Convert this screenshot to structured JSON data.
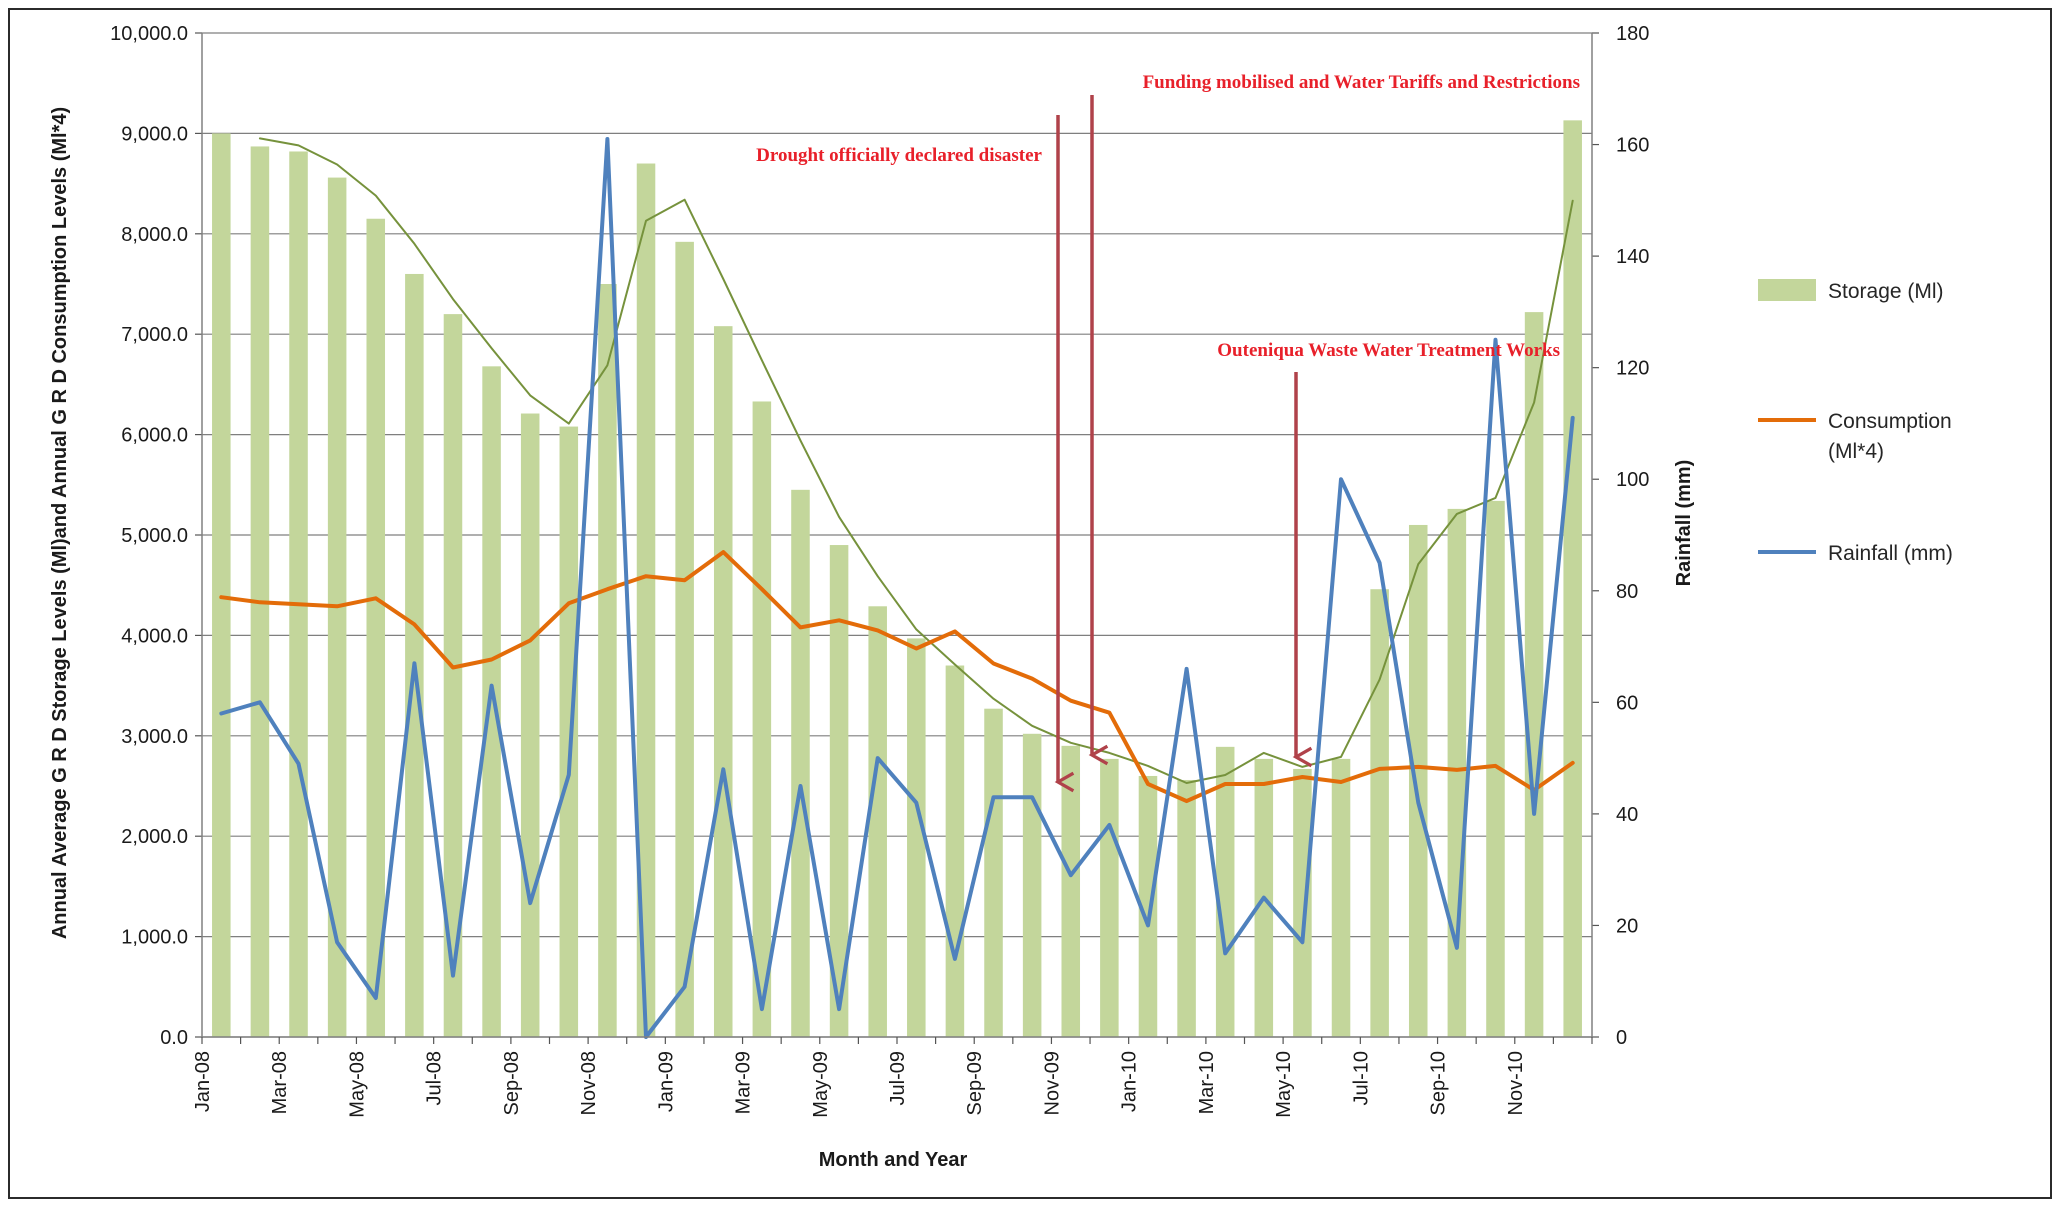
{
  "chart_data": {
    "type": "bar",
    "title": "",
    "xlabel": "Month and Year",
    "ylabel": "Annual Average G R D Storage Levels (Ml)and Annual G R D Consumption Levels (Ml*4)",
    "y2label": "Rainfall (mm)",
    "ylim": [
      0,
      10000
    ],
    "y2lim": [
      0,
      180
    ],
    "y_ticks": [
      "0.0",
      "1,000.0",
      "2,000.0",
      "3,000.0",
      "4,000.0",
      "5,000.0",
      "6,000.0",
      "7,000.0",
      "8,000.0",
      "9,000.0",
      "10,000.0"
    ],
    "y2_ticks": [
      "0",
      "20",
      "40",
      "60",
      "80",
      "100",
      "120",
      "140",
      "160",
      "180"
    ],
    "grid": true,
    "legend_position": "right",
    "categories": [
      "Jan-08",
      "Feb-08",
      "Mar-08",
      "Apr-08",
      "May-08",
      "Jun-08",
      "Jul-08",
      "Aug-08",
      "Sep-08",
      "Oct-08",
      "Nov-08",
      "Dec-08",
      "Jan-09",
      "Feb-09",
      "Mar-09",
      "Apr-09",
      "May-09",
      "Jun-09",
      "Jul-09",
      "Aug-09",
      "Sep-09",
      "Oct-09",
      "Nov-09",
      "Dec-09",
      "Jan-10",
      "Feb-10",
      "Mar-10",
      "Apr-10",
      "May-10",
      "Jun-10",
      "Jul-10",
      "Aug-10",
      "Sep-10",
      "Oct-10",
      "Nov-10",
      "Dec-10"
    ],
    "x_tick_labels": [
      "Jan-08",
      "Mar-08",
      "May-08",
      "Jul-08",
      "Sep-08",
      "Nov-08",
      "Jan-09",
      "Mar-09",
      "May-09",
      "Jul-09",
      "Sep-09",
      "Nov-09",
      "Jan-10",
      "Mar-10",
      "May-10",
      "Jul-10",
      "Sep-10",
      "Nov-10"
    ],
    "series": [
      {
        "name": "Storage (Ml)",
        "type": "bar",
        "axis": "left",
        "color": "#c3d69b",
        "values": [
          9000,
          8870,
          8820,
          8560,
          8150,
          7600,
          7200,
          6680,
          6210,
          6080,
          7500,
          8700,
          7920,
          7080,
          6330,
          5450,
          4900,
          4290,
          3970,
          3700,
          3270,
          3020,
          2900,
          2770,
          2600,
          2560,
          2890,
          2770,
          2670,
          2770,
          4460,
          5100,
          5260,
          5340,
          7220,
          9130
        ]
      },
      {
        "name": "Consumption (Ml*4)",
        "type": "line",
        "axis": "left",
        "color": "#e36c09",
        "values": [
          4380,
          4330,
          4310,
          4290,
          4370,
          4110,
          3680,
          3760,
          3950,
          4320,
          4460,
          4590,
          4550,
          4830,
          4460,
          4080,
          4150,
          4050,
          3870,
          4040,
          3720,
          3570,
          3350,
          3230,
          2520,
          2350,
          2520,
          2520,
          2590,
          2540,
          2670,
          2690,
          2660,
          2700,
          2460,
          2730
        ]
      },
      {
        "name": "Rainfall (mm)",
        "type": "line",
        "axis": "right",
        "color": "#4f81bd",
        "values": [
          58,
          60,
          49,
          17,
          7,
          67,
          11,
          63,
          24,
          47,
          161,
          0,
          9,
          48,
          5,
          45,
          5,
          50,
          42,
          14,
          43,
          43,
          29,
          38,
          20,
          66,
          15,
          25,
          17,
          100,
          85,
          42,
          16,
          125,
          40,
          111
        ]
      },
      {
        "type": "line",
        "axis": "left",
        "color": "#76923c",
        "values": [
          null,
          8950,
          8880,
          8690,
          8380,
          7900,
          7350,
          6860,
          6390,
          6110,
          6690,
          8130,
          8340,
          7550,
          6740,
          5940,
          5180,
          4590,
          4060,
          3710,
          3370,
          3100,
          2930,
          2830,
          2700,
          2530,
          2610,
          2830,
          2690,
          2790,
          3560,
          4710,
          5210,
          5370,
          6320,
          8330
        ]
      }
    ],
    "annotations": [
      {
        "text": "Drought officially declared disaster",
        "arrow_at": "Nov-09"
      },
      {
        "text": "Funding mobilised and Water Tariffs and Restrictions",
        "arrow_at": "Dec-09"
      },
      {
        "text": "Outeniqua Waste Water Treatment Works",
        "arrow_at": "May-10"
      }
    ],
    "colors": {
      "arrow": "#b0424a",
      "annotation_text": "#e8202a",
      "grid": "#7f7f7f"
    }
  }
}
